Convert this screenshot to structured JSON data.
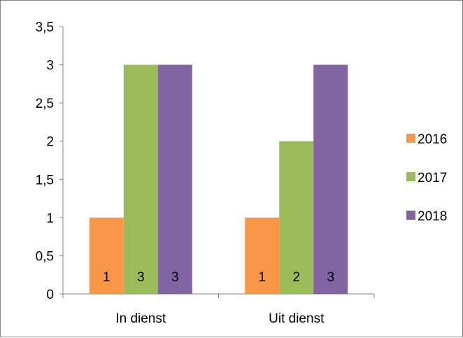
{
  "chart_data": {
    "type": "bar",
    "categories": [
      "In dienst",
      "Uit dienst"
    ],
    "series": [
      {
        "name": "2016",
        "values": [
          1,
          1
        ],
        "color": "#f79646"
      },
      {
        "name": "2017",
        "values": [
          3,
          2
        ],
        "color": "#9bbb59"
      },
      {
        "name": "2018",
        "values": [
          3,
          3
        ],
        "color": "#8064a2"
      }
    ],
    "yticks": [
      "0",
      "0,5",
      "1",
      "1,5",
      "2",
      "2,5",
      "3",
      "3,5"
    ],
    "ylim": [
      0,
      3.5
    ],
    "grid": false,
    "legend_position": "right",
    "data_labels": [
      [
        "1",
        "3",
        "3"
      ],
      [
        "1",
        "2",
        "3"
      ]
    ]
  }
}
